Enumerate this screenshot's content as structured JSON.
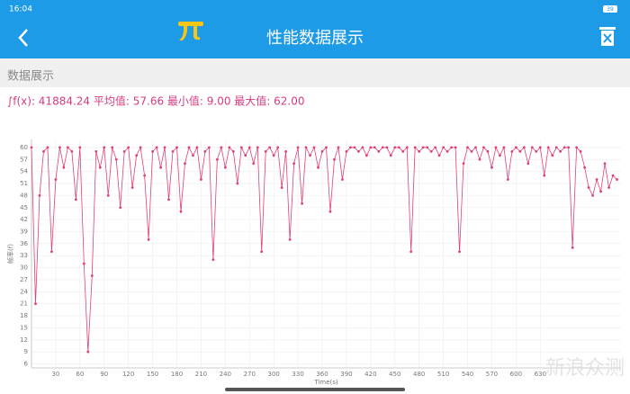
{
  "status_bar": {
    "time": "16:04",
    "battery": "39"
  },
  "app_bar": {
    "title": "性能数据展示"
  },
  "section_header": "数据展示",
  "watermark": "新浪众测",
  "chart_data": {
    "type": "line",
    "summary": "∫f(x): 41884.24 平均值: 57.66 最小值: 9.00 最大值: 62.00",
    "x_label": "Time(s)",
    "y_label": "帧率(f)",
    "x": [
      0,
      5,
      10,
      15,
      20,
      25,
      30,
      35,
      40,
      45,
      50,
      55,
      60,
      65,
      70,
      75,
      80,
      85,
      90,
      95,
      100,
      105,
      110,
      115,
      120,
      125,
      130,
      135,
      140,
      145,
      150,
      155,
      160,
      165,
      170,
      175,
      180,
      185,
      190,
      195,
      200,
      205,
      210,
      215,
      220,
      225,
      230,
      235,
      240,
      245,
      250,
      255,
      260,
      265,
      270,
      275,
      280,
      285,
      290,
      295,
      300,
      305,
      310,
      315,
      320,
      325,
      330,
      335,
      340,
      345,
      350,
      355,
      360,
      365,
      370,
      375,
      380,
      385,
      390,
      395,
      400,
      405,
      410,
      415,
      420,
      425,
      430,
      435,
      440,
      445,
      450,
      455,
      460,
      465,
      470,
      475,
      480,
      485,
      490,
      495,
      500,
      505,
      510,
      515,
      520,
      525,
      530,
      535,
      540,
      545,
      550,
      555,
      560,
      565,
      570,
      575,
      580,
      585,
      590,
      595,
      600,
      605,
      610,
      615,
      620,
      625,
      630,
      635,
      640,
      645,
      650,
      655,
      660,
      665,
      670,
      675,
      680,
      685,
      690,
      695,
      700,
      705,
      710,
      715,
      720,
      725
    ],
    "series": [
      {
        "color": "#e0407a",
        "values": [
          60,
          21,
          48,
          59,
          60,
          34,
          52,
          60,
          55,
          60,
          59,
          47,
          60,
          31,
          9,
          28,
          59,
          55,
          60,
          48,
          60,
          57,
          45,
          59,
          60,
          50,
          58,
          60,
          53,
          37,
          59,
          60,
          55,
          60,
          47,
          59,
          60,
          44,
          56,
          60,
          58,
          60,
          52,
          59,
          60,
          32,
          57,
          60,
          55,
          60,
          59,
          51,
          60,
          58,
          60,
          56,
          60,
          34,
          59,
          60,
          58,
          60,
          50,
          59,
          37,
          56,
          60,
          46,
          60,
          58,
          60,
          55,
          59,
          60,
          44,
          57,
          60,
          52,
          59,
          60,
          60,
          59,
          60,
          58,
          60,
          60,
          59,
          60,
          60,
          58,
          60,
          60,
          59,
          60,
          34,
          60,
          59,
          60,
          60,
          59,
          60,
          58,
          60,
          59,
          60,
          60,
          34,
          56,
          60,
          59,
          60,
          57,
          60,
          59,
          55,
          60,
          58,
          60,
          52,
          59,
          60,
          59,
          60,
          56,
          60,
          59,
          60,
          53,
          60,
          58,
          60,
          59,
          60,
          60,
          35,
          60,
          59,
          55,
          50,
          48,
          52,
          49,
          56,
          50,
          53,
          52
        ]
      }
    ],
    "xlim": [
      0,
      730
    ],
    "ylim": [
      5,
      62
    ],
    "xticks": [
      30,
      60,
      90,
      120,
      150,
      180,
      210,
      240,
      270,
      300,
      330,
      360,
      390,
      420,
      450,
      480,
      510,
      540,
      570,
      600,
      630
    ],
    "yticks": [
      6,
      9,
      12,
      15,
      18,
      21,
      24,
      27,
      30,
      33,
      36,
      39,
      42,
      45,
      48,
      51,
      54,
      57,
      60
    ],
    "grid": true
  }
}
